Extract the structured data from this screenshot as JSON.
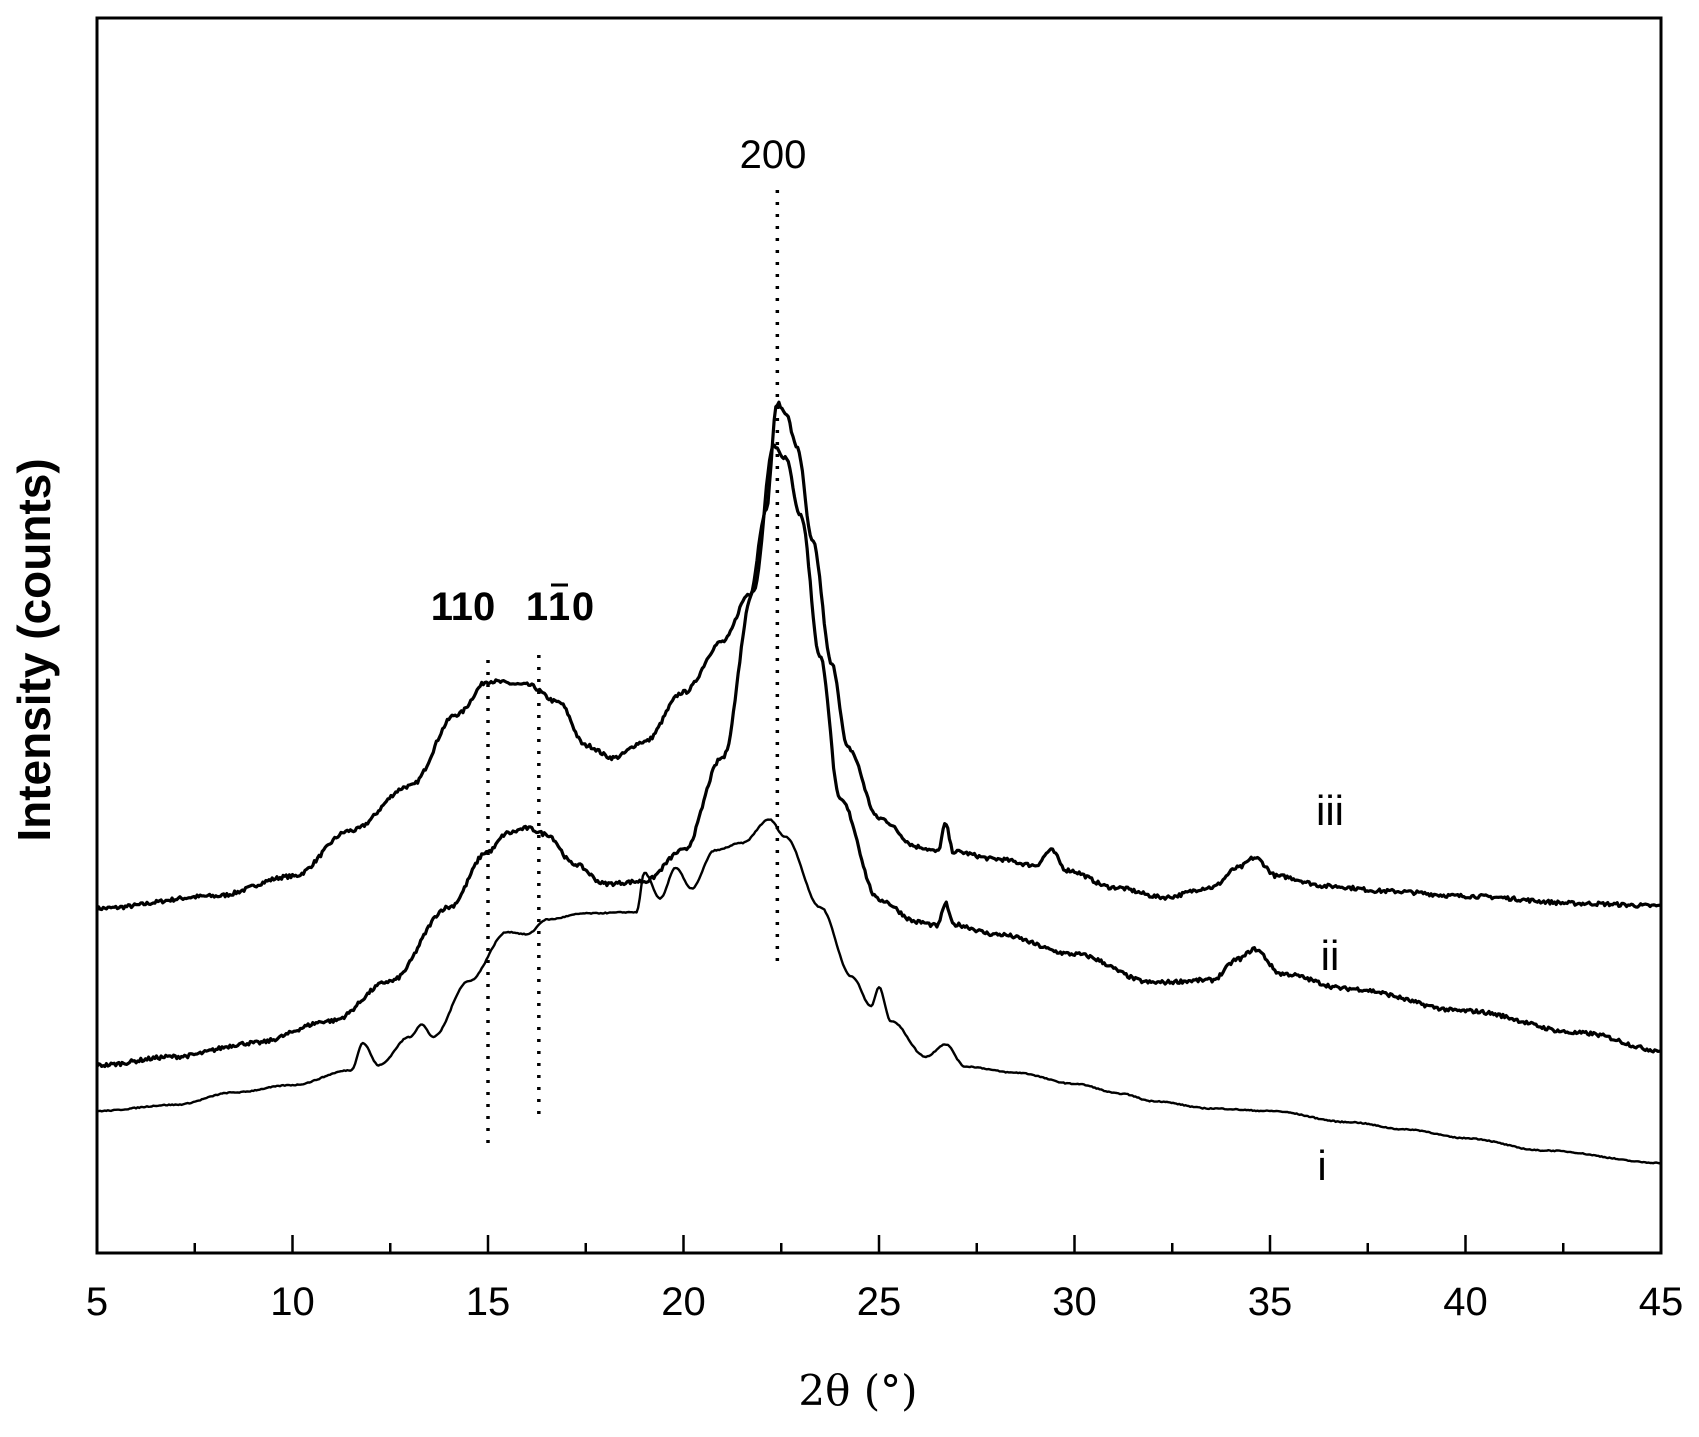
{
  "chart_data": {
    "type": "line",
    "title": "",
    "xlabel": "2θ (°)",
    "ylabel": "Intensity (counts)",
    "xlim": [
      5,
      45
    ],
    "ylim": [
      0,
      100
    ],
    "x_ticks": [
      "5",
      "10",
      "15",
      "20",
      "25",
      "30",
      "35",
      "40",
      "45"
    ],
    "grid": false,
    "series": [
      {
        "name": "iii",
        "points": [
          [
            5,
            27.9
          ],
          [
            8,
            28.9
          ],
          [
            10,
            30.5
          ],
          [
            11.5,
            34.2
          ],
          [
            13,
            37.8
          ],
          [
            14.2,
            43.6
          ],
          [
            15,
            46.3
          ],
          [
            16,
            46.0
          ],
          [
            16.8,
            44.6
          ],
          [
            17.5,
            41.1
          ],
          [
            18.2,
            40.1
          ],
          [
            19,
            41.4
          ],
          [
            20,
            45.4
          ],
          [
            21,
            49.5
          ],
          [
            21.7,
            53.4
          ],
          [
            22.1,
            60.0
          ],
          [
            22.4,
            68.8
          ],
          [
            22.6,
            68.1
          ],
          [
            22.9,
            65.3
          ],
          [
            23.3,
            57.6
          ],
          [
            23.8,
            47.6
          ],
          [
            24.2,
            40.9
          ],
          [
            25,
            35.2
          ],
          [
            26,
            32.9
          ],
          [
            26.5,
            32.5
          ],
          [
            26.7,
            34.7
          ],
          [
            26.9,
            32.5
          ],
          [
            28,
            31.9
          ],
          [
            29,
            31.4
          ],
          [
            29.4,
            32.6
          ],
          [
            29.8,
            31.0
          ],
          [
            31,
            29.6
          ],
          [
            32.3,
            28.8
          ],
          [
            33.5,
            29.6
          ],
          [
            34.2,
            31.2
          ],
          [
            34.6,
            32.0
          ],
          [
            35.2,
            30.5
          ],
          [
            36.5,
            29.7
          ],
          [
            38,
            29.3
          ],
          [
            40,
            28.9
          ],
          [
            43,
            28.3
          ],
          [
            45,
            28.1
          ]
        ]
      },
      {
        "name": "ii",
        "points": [
          [
            5,
            15.2
          ],
          [
            7,
            15.9
          ],
          [
            9,
            17.0
          ],
          [
            11,
            18.8
          ],
          [
            12.5,
            22.0
          ],
          [
            14,
            28.0
          ],
          [
            15,
            32.5
          ],
          [
            15.5,
            34.0
          ],
          [
            16,
            34.4
          ],
          [
            16.5,
            33.9
          ],
          [
            17.2,
            31.5
          ],
          [
            18,
            29.9
          ],
          [
            19,
            30.1
          ],
          [
            20,
            32.6
          ],
          [
            21,
            40.1
          ],
          [
            21.8,
            53.7
          ],
          [
            22.3,
            65.4
          ],
          [
            22.6,
            64.4
          ],
          [
            23,
            59.7
          ],
          [
            23.5,
            48.2
          ],
          [
            24,
            36.7
          ],
          [
            25,
            28.6
          ],
          [
            26,
            26.8
          ],
          [
            26.5,
            26.5
          ],
          [
            26.7,
            28.3
          ],
          [
            26.9,
            26.6
          ],
          [
            28,
            25.8
          ],
          [
            30,
            24.2
          ],
          [
            32,
            21.9
          ],
          [
            33.5,
            22.1
          ],
          [
            34.2,
            23.8
          ],
          [
            34.6,
            24.6
          ],
          [
            35.3,
            22.6
          ],
          [
            37,
            21.4
          ],
          [
            40,
            19.6
          ],
          [
            43,
            17.8
          ],
          [
            45,
            16.4
          ]
        ]
      },
      {
        "name": "i",
        "points": [
          [
            5,
            11.5
          ],
          [
            7,
            12.0
          ],
          [
            8.5,
            13.0
          ],
          [
            10,
            13.6
          ],
          [
            11.5,
            14.8
          ],
          [
            11.8,
            17.0
          ],
          [
            12.2,
            15.2
          ],
          [
            13,
            17.5
          ],
          [
            13.3,
            18.5
          ],
          [
            13.6,
            17.5
          ],
          [
            14.5,
            22.0
          ],
          [
            15.5,
            26.0
          ],
          [
            16,
            25.8
          ],
          [
            16.5,
            27.0
          ],
          [
            17.5,
            27.5
          ],
          [
            18.8,
            27.6
          ],
          [
            19,
            30.8
          ],
          [
            19.4,
            28.7
          ],
          [
            19.8,
            31.2
          ],
          [
            20.2,
            29.5
          ],
          [
            20.8,
            32.6
          ],
          [
            21.5,
            33.2
          ],
          [
            22.2,
            35.1
          ],
          [
            22.6,
            33.7
          ],
          [
            23.5,
            28.0
          ],
          [
            24.3,
            22.4
          ],
          [
            24.8,
            20.0
          ],
          [
            25,
            21.5
          ],
          [
            25.3,
            18.8
          ],
          [
            26.2,
            15.9
          ],
          [
            26.7,
            16.9
          ],
          [
            27.2,
            15.1
          ],
          [
            28.5,
            14.6
          ],
          [
            30,
            13.7
          ],
          [
            31.2,
            12.9
          ],
          [
            32,
            12.3
          ],
          [
            33.5,
            11.7
          ],
          [
            35,
            11.5
          ],
          [
            37,
            10.6
          ],
          [
            38.5,
            10.0
          ],
          [
            40,
            9.3
          ],
          [
            42,
            8.3
          ],
          [
            45,
            7.3
          ]
        ]
      }
    ],
    "annotations": [
      "200",
      "110",
      "1",
      "1",
      "0"
    ],
    "reference_lines_x": [
      22.4,
      15.0,
      16.3
    ]
  }
}
